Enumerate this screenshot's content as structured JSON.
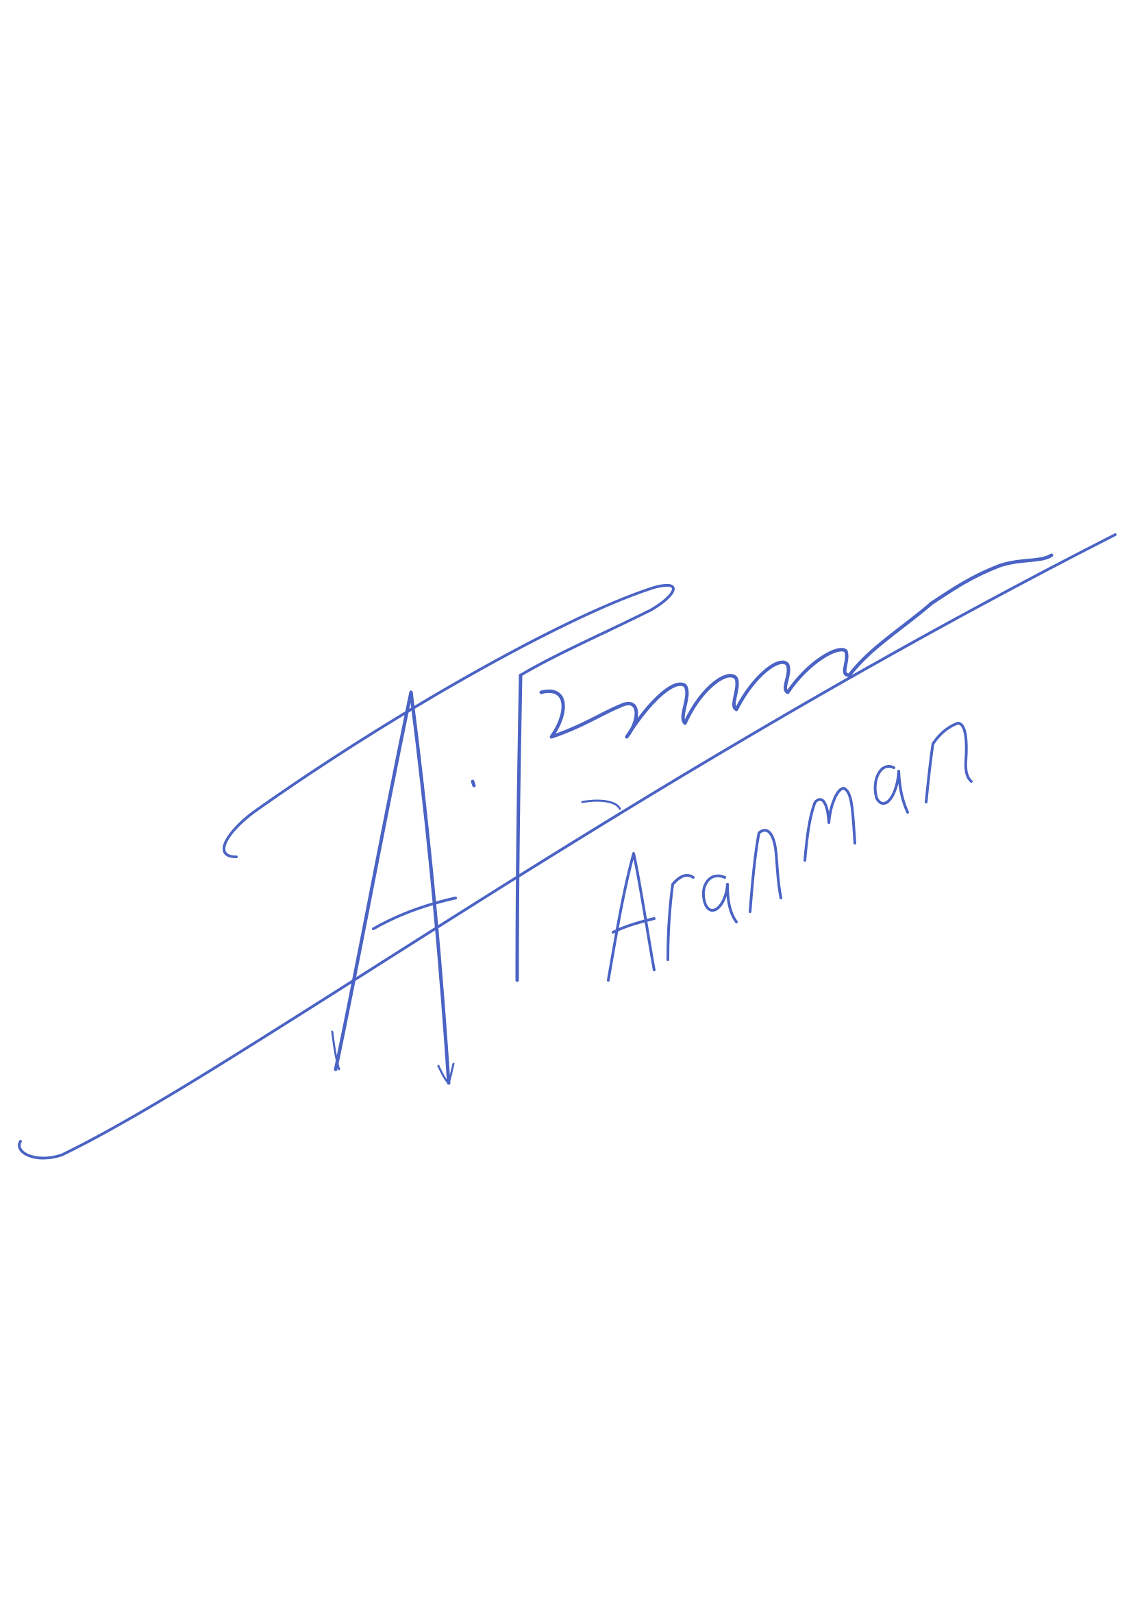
{
  "signature": {
    "handwritten_text": "Aranman",
    "ink_color": "#4A63C4"
  }
}
